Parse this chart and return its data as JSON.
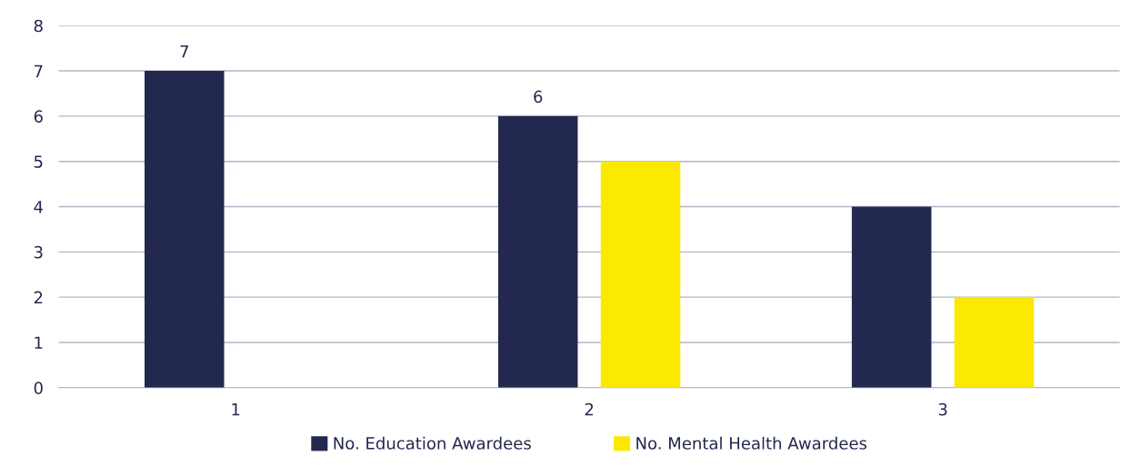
{
  "chart_data": {
    "type": "bar",
    "categories": [
      "1",
      "2",
      "3"
    ],
    "series": [
      {
        "name": "No. Education Awardees",
        "color": "#23284f",
        "values": [
          7,
          6,
          4
        ],
        "value_labels": [
          "7",
          "6",
          null
        ]
      },
      {
        "name": "No. Mental Health Awardees",
        "color": "#fce900",
        "values": [
          null,
          5,
          2
        ]
      }
    ],
    "ylim": [
      0,
      8
    ],
    "yticks": [
      0,
      1,
      2,
      3,
      4,
      5,
      6,
      7,
      8
    ],
    "grid": "y",
    "legend": "bottom"
  }
}
